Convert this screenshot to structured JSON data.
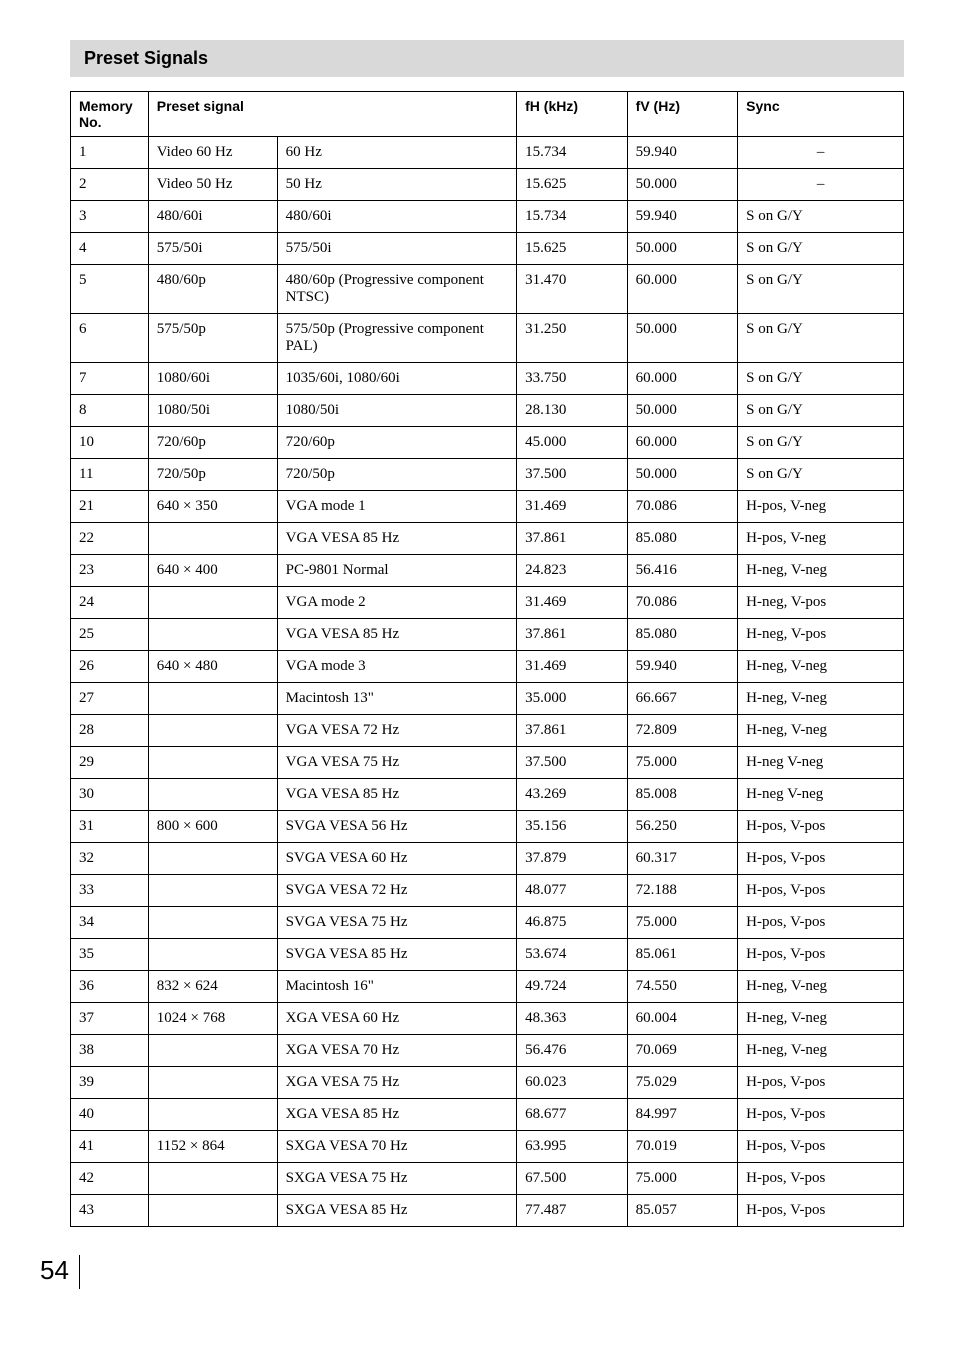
{
  "header": "Preset Signals",
  "columns": {
    "memno": "Memory No.",
    "preset": "Preset signal",
    "fh": "fH (kHz)",
    "fv": "fV (Hz)",
    "sync": "Sync"
  },
  "rows": [
    {
      "no": "1",
      "res": "Video 60 Hz",
      "desc": "60 Hz",
      "fh": "15.734",
      "fv": "59.940",
      "sync": "–",
      "syncCenter": true,
      "mergeRes": false
    },
    {
      "no": "2",
      "res": "Video 50 Hz",
      "desc": "50 Hz",
      "fh": "15.625",
      "fv": "50.000",
      "sync": "–",
      "syncCenter": true,
      "mergeRes": false
    },
    {
      "no": "3",
      "res": "480/60i",
      "desc": "480/60i",
      "fh": "15.734",
      "fv": "59.940",
      "sync": "S on G/Y",
      "mergeRes": false
    },
    {
      "no": "4",
      "res": "575/50i",
      "desc": "575/50i",
      "fh": "15.625",
      "fv": "50.000",
      "sync": "S on G/Y",
      "mergeRes": false
    },
    {
      "no": "5",
      "res": "480/60p",
      "desc": "480/60p (Progressive component NTSC)",
      "fh": "31.470",
      "fv": "60.000",
      "sync": "S on G/Y",
      "mergeRes": false
    },
    {
      "no": "6",
      "res": "575/50p",
      "desc": "575/50p (Progressive component PAL)",
      "fh": "31.250",
      "fv": "50.000",
      "sync": "S on G/Y",
      "mergeRes": false
    },
    {
      "no": "7",
      "res": "1080/60i",
      "desc": "1035/60i, 1080/60i",
      "fh": "33.750",
      "fv": "60.000",
      "sync": "S on G/Y",
      "mergeRes": false
    },
    {
      "no": "8",
      "res": "1080/50i",
      "desc": "1080/50i",
      "fh": "28.130",
      "fv": "50.000",
      "sync": "S on G/Y",
      "mergeRes": false
    },
    {
      "no": "10",
      "res": "720/60p",
      "desc": "720/60p",
      "fh": "45.000",
      "fv": "60.000",
      "sync": "S on G/Y",
      "mergeRes": false
    },
    {
      "no": "11",
      "res": "720/50p",
      "desc": "720/50p",
      "fh": "37.500",
      "fv": "50.000",
      "sync": "S on G/Y",
      "mergeRes": false
    },
    {
      "no": "21",
      "res": "640 × 350",
      "desc": "VGA mode 1",
      "fh": "31.469",
      "fv": "70.086",
      "sync": "H-pos, V-neg",
      "mergeRes": false
    },
    {
      "no": "22",
      "res": "",
      "desc": "VGA VESA 85 Hz",
      "fh": "37.861",
      "fv": "85.080",
      "sync": "H-pos, V-neg",
      "mergeRes": true
    },
    {
      "no": "23",
      "res": "640 × 400",
      "desc": "PC-9801 Normal",
      "fh": "24.823",
      "fv": "56.416",
      "sync": "H-neg, V-neg",
      "mergeRes": false
    },
    {
      "no": "24",
      "res": "",
      "desc": "VGA mode 2",
      "fh": "31.469",
      "fv": "70.086",
      "sync": "H-neg, V-pos",
      "mergeRes": true
    },
    {
      "no": "25",
      "res": "",
      "desc": "VGA VESA 85 Hz",
      "fh": "37.861",
      "fv": "85.080",
      "sync": "H-neg, V-pos",
      "mergeRes": true
    },
    {
      "no": "26",
      "res": "640 × 480",
      "desc": "VGA mode 3",
      "fh": "31.469",
      "fv": "59.940",
      "sync": "H-neg, V-neg",
      "mergeRes": false
    },
    {
      "no": "27",
      "res": "",
      "desc": "Macintosh 13\"",
      "fh": "35.000",
      "fv": "66.667",
      "sync": "H-neg, V-neg",
      "mergeRes": true
    },
    {
      "no": "28",
      "res": "",
      "desc": "VGA VESA 72 Hz",
      "fh": "37.861",
      "fv": "72.809",
      "sync": "H-neg, V-neg",
      "mergeRes": true
    },
    {
      "no": "29",
      "res": "",
      "desc": "VGA VESA 75 Hz",
      "fh": "37.500",
      "fv": "75.000",
      "sync": "H-neg V-neg",
      "mergeRes": true
    },
    {
      "no": "30",
      "res": "",
      "desc": "VGA VESA 85 Hz",
      "fh": "43.269",
      "fv": "85.008",
      "sync": "H-neg V-neg",
      "mergeRes": true
    },
    {
      "no": "31",
      "res": "800 × 600",
      "desc": "SVGA VESA 56 Hz",
      "fh": "35.156",
      "fv": "56.250",
      "sync": "H-pos, V-pos",
      "mergeRes": false
    },
    {
      "no": "32",
      "res": "",
      "desc": "SVGA VESA 60 Hz",
      "fh": "37.879",
      "fv": "60.317",
      "sync": "H-pos, V-pos",
      "mergeRes": true
    },
    {
      "no": "33",
      "res": "",
      "desc": "SVGA VESA 72 Hz",
      "fh": "48.077",
      "fv": "72.188",
      "sync": "H-pos, V-pos",
      "mergeRes": true
    },
    {
      "no": "34",
      "res": "",
      "desc": "SVGA VESA 75 Hz",
      "fh": "46.875",
      "fv": "75.000",
      "sync": "H-pos, V-pos",
      "mergeRes": true
    },
    {
      "no": "35",
      "res": "",
      "desc": "SVGA VESA 85 Hz",
      "fh": "53.674",
      "fv": "85.061",
      "sync": "H-pos, V-pos",
      "mergeRes": true
    },
    {
      "no": "36",
      "res": "832 × 624",
      "desc": "Macintosh 16\"",
      "fh": "49.724",
      "fv": "74.550",
      "sync": "H-neg, V-neg",
      "mergeRes": false
    },
    {
      "no": "37",
      "res": "1024 × 768",
      "desc": "XGA VESA 60 Hz",
      "fh": "48.363",
      "fv": "60.004",
      "sync": "H-neg, V-neg",
      "mergeRes": false
    },
    {
      "no": "38",
      "res": "",
      "desc": "XGA VESA 70 Hz",
      "fh": "56.476",
      "fv": "70.069",
      "sync": "H-neg, V-neg",
      "mergeRes": true
    },
    {
      "no": "39",
      "res": "",
      "desc": "XGA VESA 75 Hz",
      "fh": "60.023",
      "fv": "75.029",
      "sync": "H-pos, V-pos",
      "mergeRes": true
    },
    {
      "no": "40",
      "res": "",
      "desc": "XGA VESA 85 Hz",
      "fh": "68.677",
      "fv": "84.997",
      "sync": "H-pos, V-pos",
      "mergeRes": true
    },
    {
      "no": "41",
      "res": "1152 × 864",
      "desc": "SXGA VESA 70 Hz",
      "fh": "63.995",
      "fv": "70.019",
      "sync": "H-pos, V-pos",
      "mergeRes": false
    },
    {
      "no": "42",
      "res": "",
      "desc": "SXGA VESA 75 Hz",
      "fh": "67.500",
      "fv": "75.000",
      "sync": "H-pos, V-pos",
      "mergeRes": true
    },
    {
      "no": "43",
      "res": "",
      "desc": "SXGA VESA 85 Hz",
      "fh": "77.487",
      "fv": "85.057",
      "sync": "H-pos, V-pos",
      "mergeRes": true
    }
  ],
  "pageNumber": "54"
}
